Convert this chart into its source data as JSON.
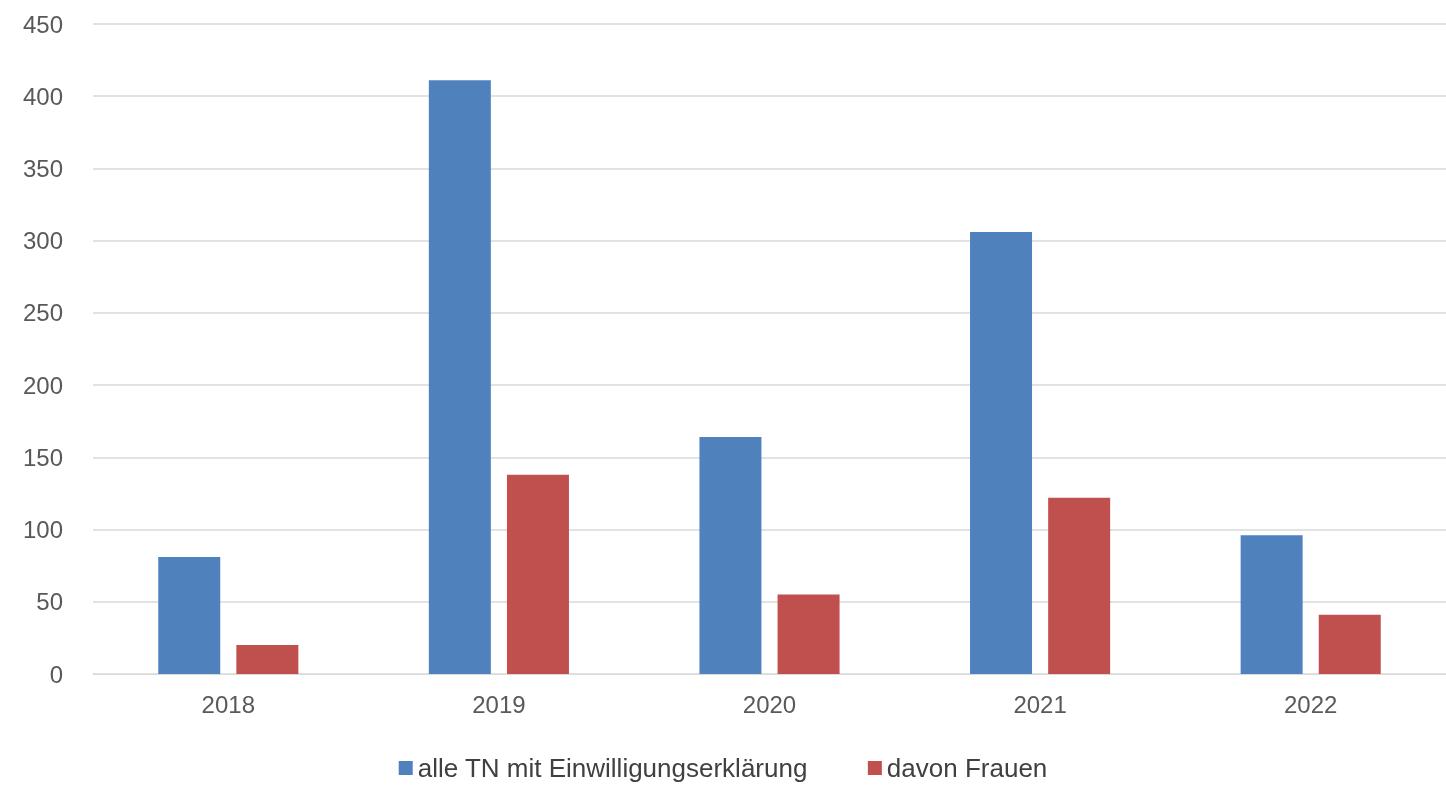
{
  "chart_data": {
    "type": "bar",
    "categories": [
      "2018",
      "2019",
      "2020",
      "2021",
      "2022"
    ],
    "series": [
      {
        "name": "alle TN mit Einwilligungserklärung",
        "color": "#4f81bd",
        "values": [
          81,
          411,
          164,
          306,
          96
        ]
      },
      {
        "name": "davon Frauen",
        "color": "#c0504d",
        "values": [
          20,
          138,
          55,
          122,
          41
        ]
      }
    ],
    "ylim": [
      0,
      450
    ],
    "yticks": [
      0,
      50,
      100,
      150,
      200,
      250,
      300,
      350,
      400,
      450
    ],
    "grid": "y",
    "legend": "bottom"
  }
}
